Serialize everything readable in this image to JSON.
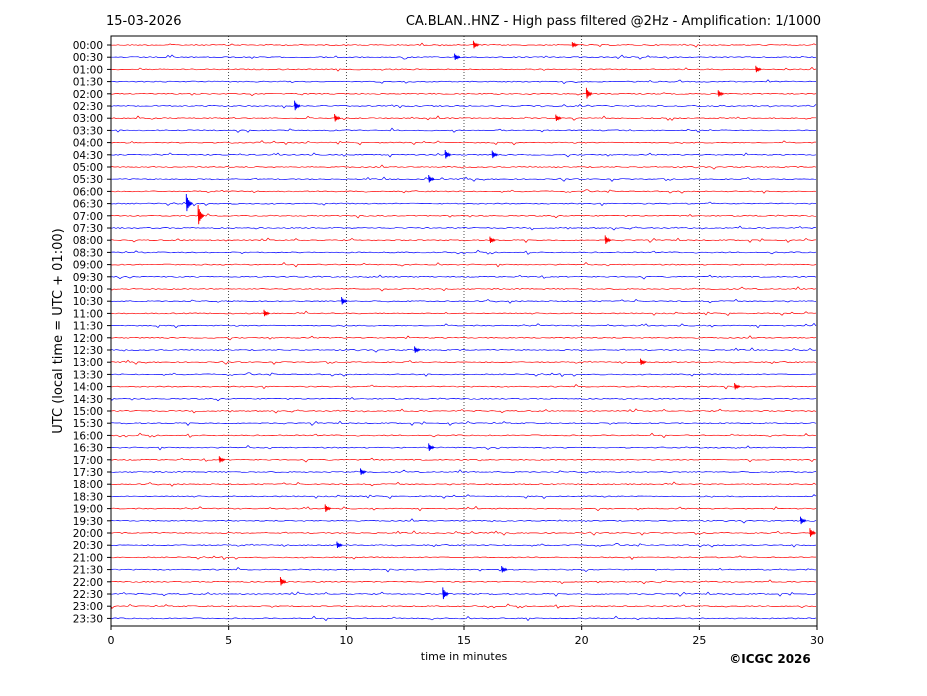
{
  "header": {
    "date": "15-03-2026",
    "title": "CA.BLAN..HNZ - High pass filtered @2Hz - Amplification: 1/1000"
  },
  "footer": {
    "copyright": "©ICGC 2026"
  },
  "colors": {
    "trace_a": "#ff0000",
    "trace_b": "#0000ff",
    "grid": "#000000",
    "background": "#ffffff"
  },
  "chart_data": {
    "type": "line",
    "title": "CA.BLAN..HNZ - High pass filtered @2Hz - Amplification: 1/1000",
    "xlabel": "time in minutes",
    "ylabel": "UTC (local time = UTC + 01:00)",
    "xlim": [
      0,
      30
    ],
    "x_ticks": [
      0,
      5,
      10,
      15,
      20,
      25,
      30
    ],
    "grid": "vertical dotted lines at 5 minute intervals",
    "row_color_pattern": [
      "red",
      "blue"
    ],
    "rows": [
      "00:00",
      "00:30",
      "01:00",
      "01:30",
      "02:00",
      "02:30",
      "03:00",
      "03:30",
      "04:00",
      "04:30",
      "05:00",
      "05:30",
      "06:00",
      "06:30",
      "07:00",
      "07:30",
      "08:00",
      "08:30",
      "09:00",
      "09:30",
      "10:00",
      "10:30",
      "11:00",
      "11:30",
      "12:00",
      "12:30",
      "13:00",
      "13:30",
      "14:00",
      "14:30",
      "15:00",
      "15:30",
      "16:00",
      "16:30",
      "17:00",
      "17:30",
      "18:00",
      "18:30",
      "19:00",
      "19:30",
      "20:00",
      "20:30",
      "21:00",
      "21:30",
      "22:00",
      "22:30",
      "23:00",
      "23:30"
    ],
    "events": [
      {
        "row": "00:00",
        "minute": 15.4,
        "amplitude": 0.35
      },
      {
        "row": "00:00",
        "minute": 19.6,
        "amplitude": 0.25
      },
      {
        "row": "00:30",
        "minute": 14.6,
        "amplitude": 0.3
      },
      {
        "row": "01:00",
        "minute": 27.4,
        "amplitude": 0.3
      },
      {
        "row": "02:00",
        "minute": 20.2,
        "amplitude": 0.5
      },
      {
        "row": "02:00",
        "minute": 25.8,
        "amplitude": 0.3
      },
      {
        "row": "02:30",
        "minute": 7.8,
        "amplitude": 0.45
      },
      {
        "row": "03:00",
        "minute": 9.5,
        "amplitude": 0.35
      },
      {
        "row": "03:00",
        "minute": 18.9,
        "amplitude": 0.3
      },
      {
        "row": "04:30",
        "minute": 14.2,
        "amplitude": 0.4
      },
      {
        "row": "04:30",
        "minute": 16.2,
        "amplitude": 0.35
      },
      {
        "row": "05:30",
        "minute": 13.5,
        "amplitude": 0.35
      },
      {
        "row": "06:30",
        "minute": 3.2,
        "amplitude": 0.8
      },
      {
        "row": "07:00",
        "minute": 3.7,
        "amplitude": 0.9
      },
      {
        "row": "08:00",
        "minute": 16.1,
        "amplitude": 0.3
      },
      {
        "row": "08:00",
        "minute": 21.0,
        "amplitude": 0.4
      },
      {
        "row": "10:30",
        "minute": 9.8,
        "amplitude": 0.35
      },
      {
        "row": "11:00",
        "minute": 6.5,
        "amplitude": 0.3
      },
      {
        "row": "12:30",
        "minute": 12.9,
        "amplitude": 0.3
      },
      {
        "row": "13:00",
        "minute": 22.5,
        "amplitude": 0.3
      },
      {
        "row": "14:00",
        "minute": 26.5,
        "amplitude": 0.3
      },
      {
        "row": "16:30",
        "minute": 13.5,
        "amplitude": 0.35
      },
      {
        "row": "17:00",
        "minute": 4.6,
        "amplitude": 0.3
      },
      {
        "row": "17:30",
        "minute": 10.6,
        "amplitude": 0.3
      },
      {
        "row": "19:00",
        "minute": 9.1,
        "amplitude": 0.35
      },
      {
        "row": "19:30",
        "minute": 29.3,
        "amplitude": 0.35
      },
      {
        "row": "20:00",
        "minute": 29.7,
        "amplitude": 0.4
      },
      {
        "row": "20:30",
        "minute": 9.6,
        "amplitude": 0.3
      },
      {
        "row": "21:30",
        "minute": 16.6,
        "amplitude": 0.3
      },
      {
        "row": "22:00",
        "minute": 7.2,
        "amplitude": 0.4
      },
      {
        "row": "22:30",
        "minute": 14.1,
        "amplitude": 0.55
      }
    ]
  }
}
